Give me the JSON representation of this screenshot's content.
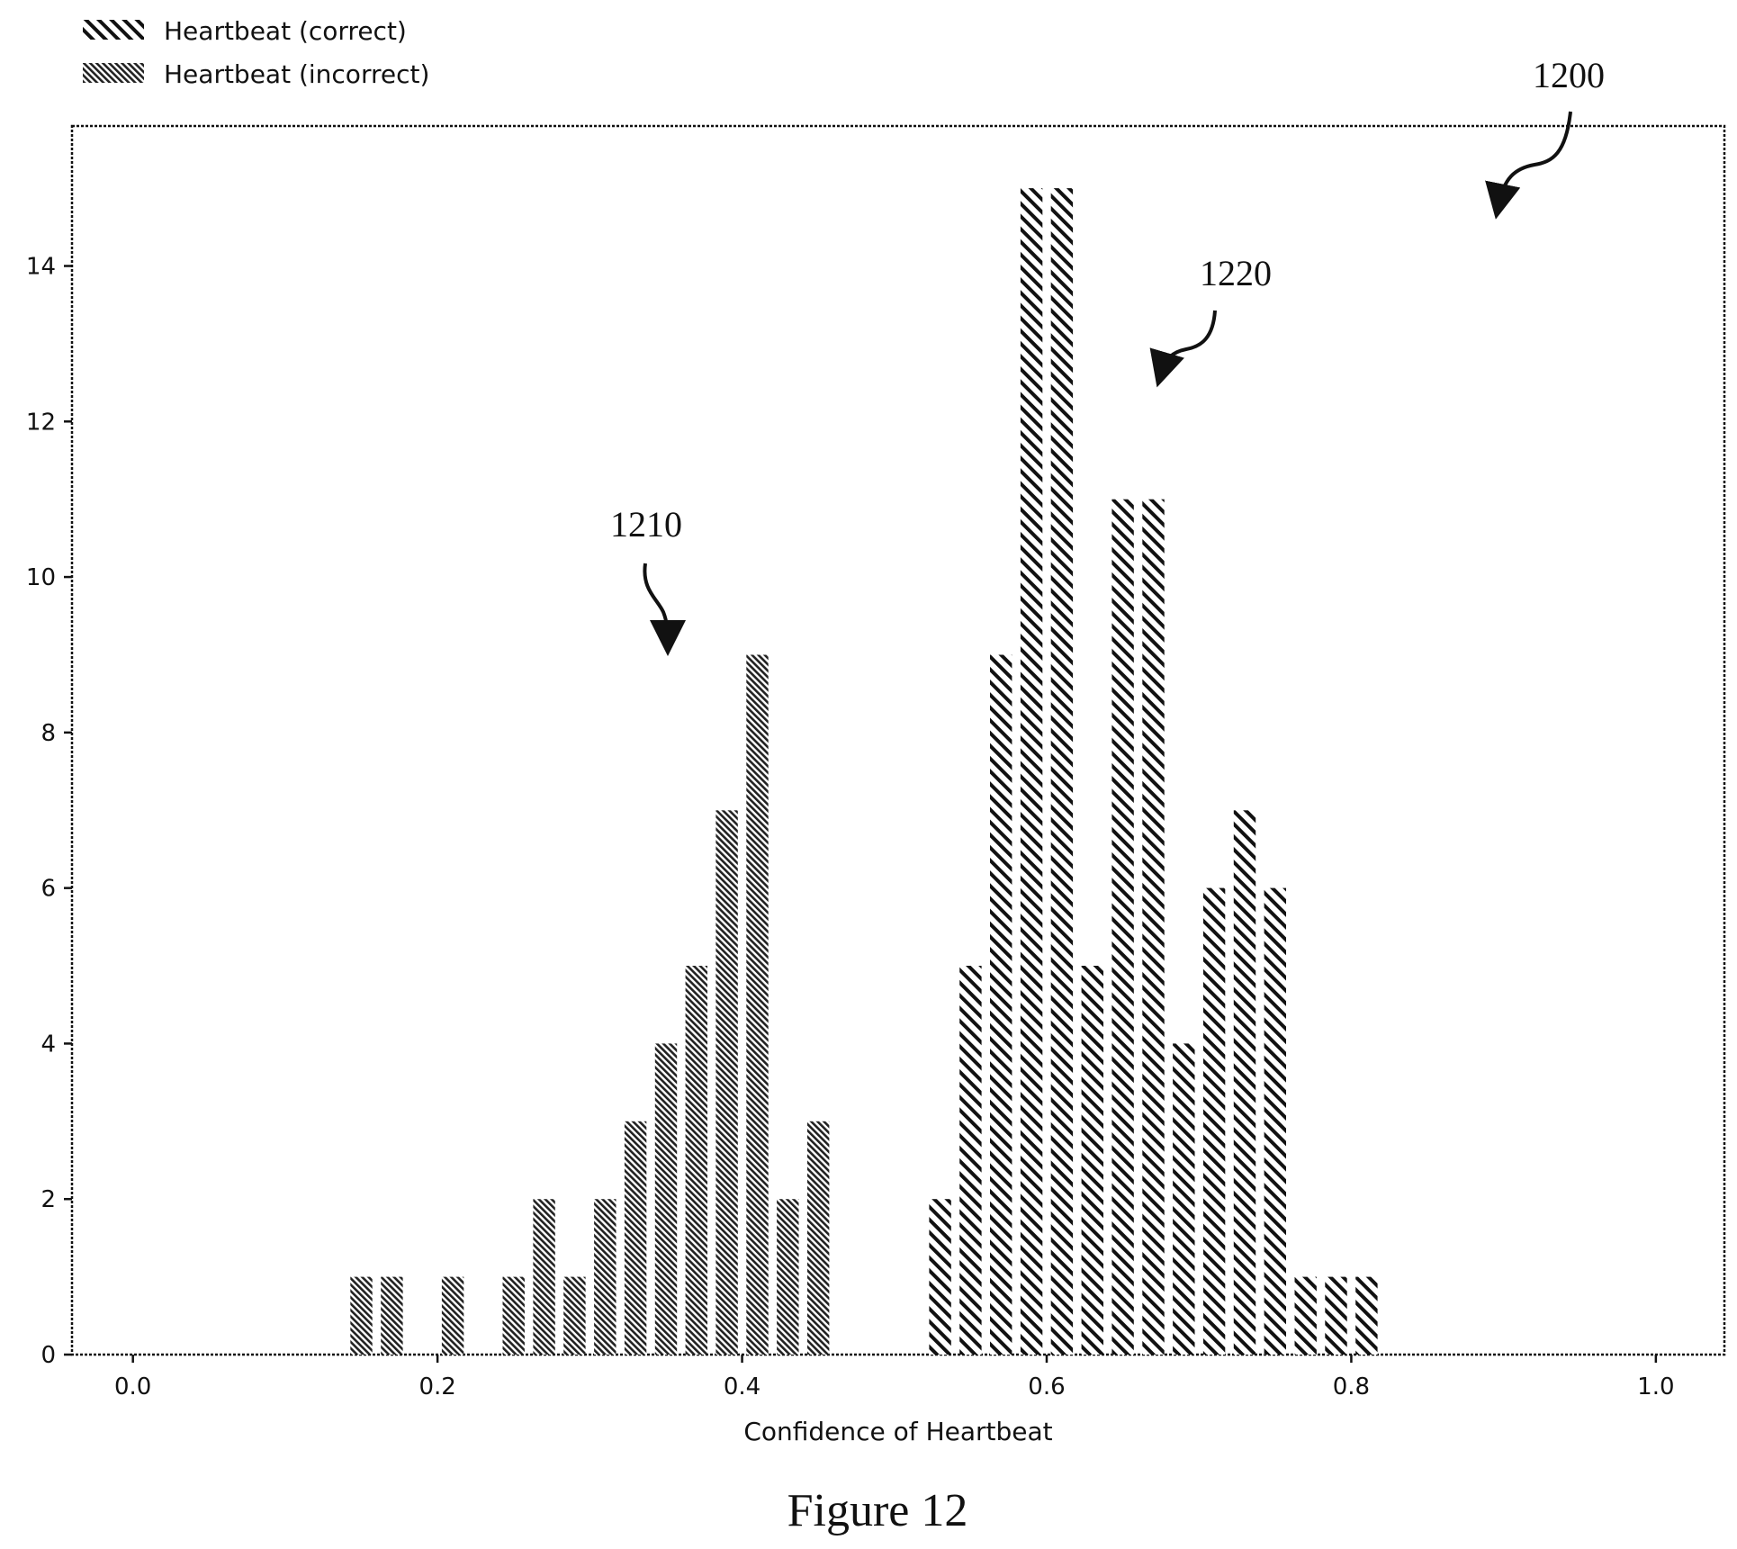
{
  "legend": {
    "correct_label": "Heartbeat (correct)",
    "incorrect_label": "Heartbeat (incorrect)"
  },
  "reference_numerals": {
    "figure_ref": "1200",
    "incorrect_dist_ref": "1210",
    "correct_dist_ref": "1220"
  },
  "caption": "Figure 12",
  "chart_data": {
    "type": "bar",
    "xlabel": "Confidence of Heartbeat",
    "ylabel": "",
    "xlim": [
      -0.04,
      1.045
    ],
    "ylim": [
      0,
      15.8
    ],
    "x_ticks": [
      0.0,
      0.2,
      0.4,
      0.6,
      0.8,
      1.0
    ],
    "x_tick_labels": [
      "0.0",
      "0.2",
      "0.4",
      "0.6",
      "0.8",
      "1.0"
    ],
    "y_ticks": [
      0,
      2,
      4,
      6,
      8,
      10,
      12,
      14
    ],
    "y_tick_labels": [
      "0",
      "2",
      "4",
      "6",
      "8",
      "10",
      "12",
      "14"
    ],
    "bin_width": 0.02,
    "grid": false,
    "legend_position": "top-left, above plot",
    "series": [
      {
        "name": "Heartbeat (correct)",
        "pattern": "sparse-diagonal-hatch",
        "x": [
          0.53,
          0.55,
          0.57,
          0.59,
          0.61,
          0.63,
          0.65,
          0.67,
          0.69,
          0.71,
          0.73,
          0.75,
          0.77,
          0.79,
          0.81
        ],
        "values": [
          2,
          5,
          9,
          15,
          15,
          5,
          11,
          11,
          4,
          6,
          7,
          6,
          1,
          1,
          1
        ]
      },
      {
        "name": "Heartbeat (incorrect)",
        "pattern": "dense-diagonal-hatch",
        "x": [
          0.15,
          0.17,
          0.21,
          0.25,
          0.27,
          0.29,
          0.31,
          0.33,
          0.35,
          0.37,
          0.39,
          0.41,
          0.43,
          0.45
        ],
        "values": [
          1,
          1,
          1,
          1,
          2,
          1,
          2,
          3,
          4,
          5,
          7,
          9,
          2,
          3
        ]
      }
    ],
    "colors": {
      "ink": "#111111",
      "background": "#ffffff"
    }
  }
}
